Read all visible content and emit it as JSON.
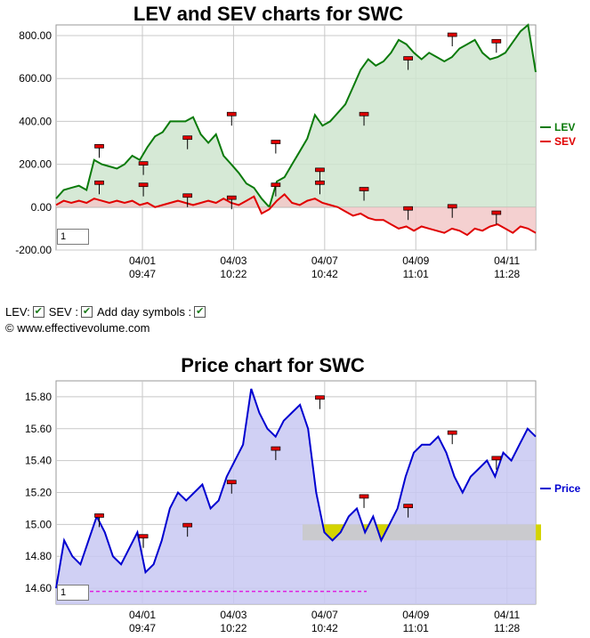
{
  "top_chart": {
    "title": "LEV and SEV charts for SWC",
    "zoom_box": "1"
  },
  "bottom_chart": {
    "title": "Price chart for SWC",
    "zoom_box": "1"
  },
  "controls": {
    "lev_label": "LEV:",
    "sev_label": "SEV :",
    "day_symbols_label": "Add day symbols :",
    "lev_checked": true,
    "sev_checked": true,
    "day_symbols_checked": true,
    "copyright": "© www.effectivevolume.com"
  },
  "chart_data": [
    {
      "type": "area",
      "title": "LEV and SEV charts for SWC",
      "ylim": [
        -200,
        850
      ],
      "yticks": [
        "800.00",
        "600.00",
        "400.00",
        "200.00",
        "0.00",
        "-200.00"
      ],
      "ytick_values": [
        800,
        600,
        400,
        200,
        0,
        -200
      ],
      "xticks": [
        {
          "date": "04/01",
          "time": "09:47"
        },
        {
          "date": "04/03",
          "time": "10:22"
        },
        {
          "date": "04/07",
          "time": "10:42"
        },
        {
          "date": "04/09",
          "time": "11:01"
        },
        {
          "date": "04/11",
          "time": "11:28"
        }
      ],
      "grid": true,
      "legend": "right",
      "series": [
        {
          "name": "LEV",
          "color": "#0a7a0a",
          "fill": "#cfe5cf",
          "values": [
            40,
            80,
            90,
            100,
            80,
            220,
            200,
            190,
            180,
            200,
            240,
            220,
            280,
            330,
            350,
            400,
            400,
            400,
            420,
            340,
            300,
            340,
            240,
            200,
            160,
            110,
            90,
            40,
            0,
            120,
            140,
            200,
            260,
            320,
            430,
            380,
            400,
            440,
            480,
            560,
            640,
            690,
            660,
            680,
            720,
            780,
            760,
            720,
            690,
            720,
            700,
            680,
            700,
            740,
            760,
            780,
            720,
            690,
            700,
            720,
            770,
            820,
            850,
            630
          ],
          "markers": [
            280,
            200,
            320,
            430,
            300,
            170,
            430,
            690,
            800,
            770
          ]
        },
        {
          "name": "SEV",
          "color": "#e00000",
          "fill": "#f2c8c8",
          "values": [
            10,
            30,
            20,
            30,
            20,
            40,
            30,
            20,
            30,
            20,
            30,
            10,
            20,
            0,
            10,
            20,
            30,
            20,
            10,
            20,
            30,
            20,
            40,
            20,
            10,
            30,
            50,
            -30,
            -10,
            30,
            60,
            20,
            10,
            30,
            40,
            20,
            10,
            0,
            -20,
            -40,
            -30,
            -50,
            -60,
            -60,
            -80,
            -100,
            -90,
            -110,
            -90,
            -100,
            -110,
            -120,
            -100,
            -110,
            -130,
            -100,
            -110,
            -90,
            -80,
            -100,
            -120,
            -90,
            -100,
            -120
          ],
          "markers": [
            110,
            100,
            50,
            40,
            100,
            110,
            80,
            -10,
            0,
            -30
          ]
        }
      ]
    },
    {
      "type": "area",
      "title": "Price chart for SWC",
      "ylim": [
        14.5,
        15.9
      ],
      "yticks": [
        "15.80",
        "15.60",
        "15.40",
        "15.20",
        "15.00",
        "14.80",
        "14.60"
      ],
      "ytick_values": [
        15.8,
        15.6,
        15.4,
        15.2,
        15.0,
        14.8,
        14.6
      ],
      "xticks": [
        {
          "date": "04/01",
          "time": "09:47"
        },
        {
          "date": "04/03",
          "time": "10:22"
        },
        {
          "date": "04/07",
          "time": "10:42"
        },
        {
          "date": "04/09",
          "time": "11:01"
        },
        {
          "date": "04/11",
          "time": "11:28"
        }
      ],
      "grid": true,
      "legend": "right",
      "series": [
        {
          "name": "Price",
          "color": "#0000d0",
          "fill": "#c8c8f2",
          "values": [
            14.6,
            14.9,
            14.8,
            14.75,
            14.9,
            15.05,
            14.95,
            14.8,
            14.75,
            14.85,
            14.95,
            14.7,
            14.75,
            14.9,
            15.1,
            15.2,
            15.15,
            15.2,
            15.25,
            15.1,
            15.15,
            15.3,
            15.4,
            15.5,
            15.85,
            15.7,
            15.6,
            15.55,
            15.65,
            15.7,
            15.75,
            15.6,
            15.2,
            14.95,
            14.9,
            14.95,
            15.05,
            15.1,
            14.95,
            15.05,
            14.9,
            15.0,
            15.1,
            15.3,
            15.45,
            15.5,
            15.5,
            15.55,
            15.45,
            15.3,
            15.2,
            15.3,
            15.35,
            15.4,
            15.3,
            15.45,
            15.4,
            15.5,
            15.6,
            15.55
          ],
          "markers": [
            15.05,
            14.92,
            14.99,
            15.26,
            15.47,
            15.79,
            15.17,
            15.11,
            15.57,
            15.41
          ]
        }
      ],
      "support_band": [
        14.9,
        15.0
      ],
      "reference_line": 14.58
    }
  ]
}
